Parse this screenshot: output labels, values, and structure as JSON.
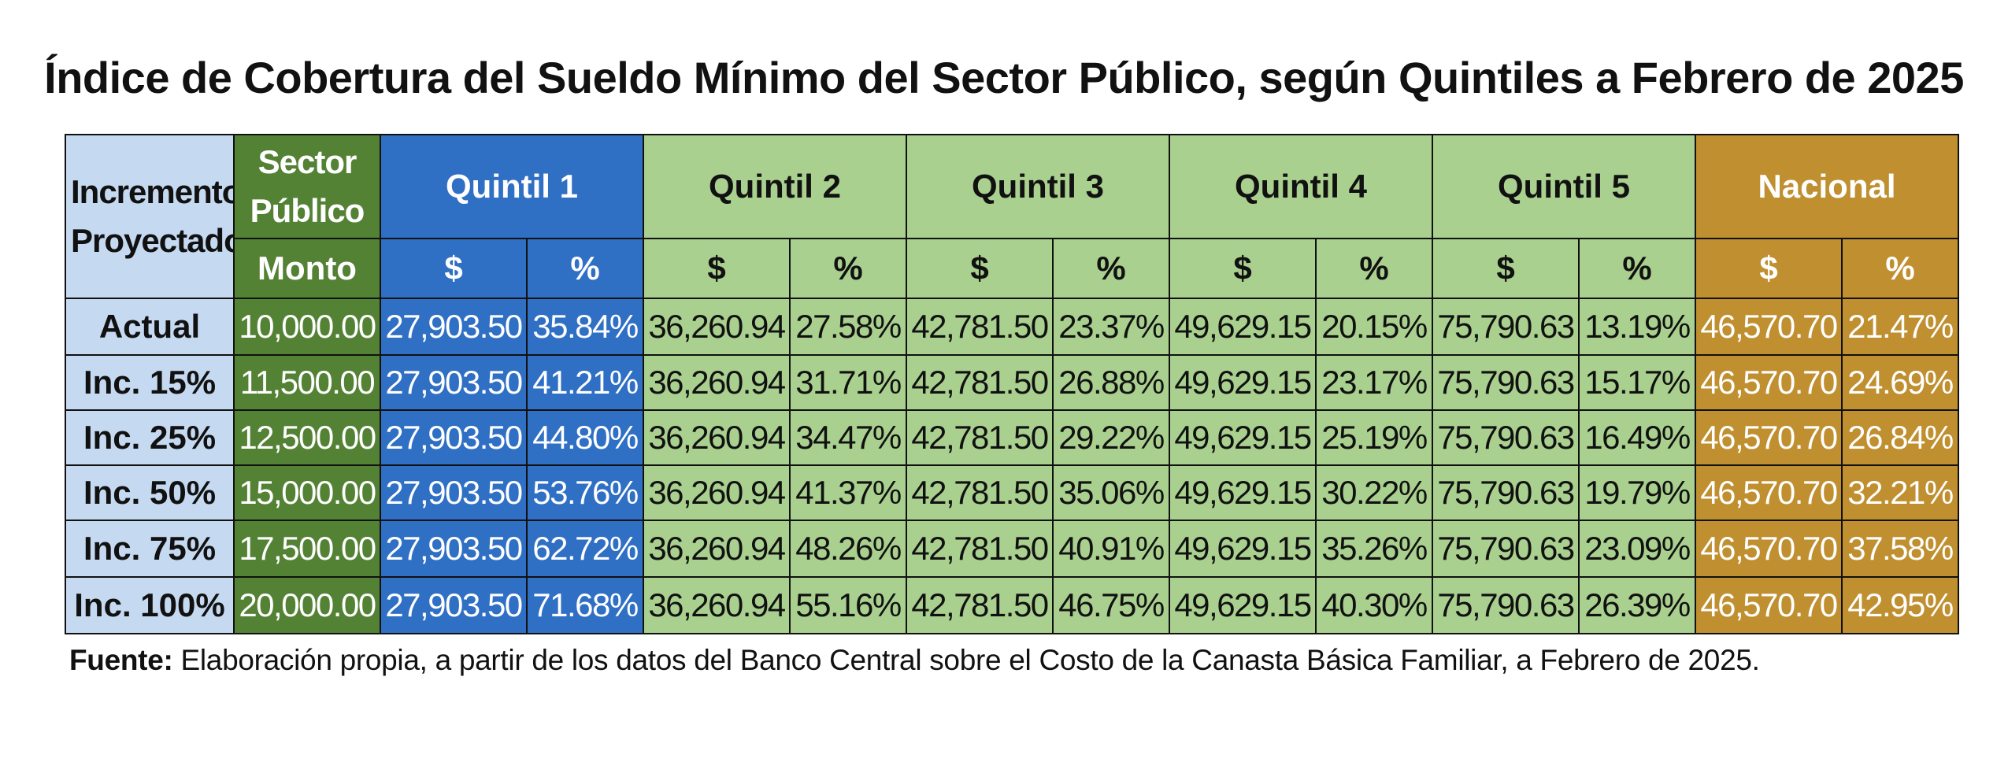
{
  "colors": {
    "incremento": "#c5d9f1",
    "sector_publico": "#548235",
    "quintil_1": "#2f6fc4",
    "quintiles_2_5": "#a9d08e",
    "nacional": "#bf8f30"
  },
  "chart_data": {
    "type": "table",
    "title": "Índice de Cobertura del Sueldo Mínimo del Sector Público, según Quintiles a Febrero de 2025",
    "header": {
      "incremento": "Incremento Proyectado",
      "sector_publico": "Sector Público",
      "monto": "Monto",
      "groups": [
        "Quintil 1",
        "Quintil 2",
        "Quintil 3",
        "Quintil 4",
        "Quintil 5",
        "Nacional"
      ],
      "money": "$",
      "pct": "%"
    },
    "rows": [
      {
        "label": "Actual",
        "monto": "10,000.00",
        "cells": [
          [
            "27,903.50",
            "35.84%"
          ],
          [
            "36,260.94",
            "27.58%"
          ],
          [
            "42,781.50",
            "23.37%"
          ],
          [
            "49,629.15",
            "20.15%"
          ],
          [
            "75,790.63",
            "13.19%"
          ],
          [
            "46,570.70",
            "21.47%"
          ]
        ]
      },
      {
        "label": "Inc. 15%",
        "monto": "11,500.00",
        "cells": [
          [
            "27,903.50",
            "41.21%"
          ],
          [
            "36,260.94",
            "31.71%"
          ],
          [
            "42,781.50",
            "26.88%"
          ],
          [
            "49,629.15",
            "23.17%"
          ],
          [
            "75,790.63",
            "15.17%"
          ],
          [
            "46,570.70",
            "24.69%"
          ]
        ]
      },
      {
        "label": "Inc. 25%",
        "monto": "12,500.00",
        "cells": [
          [
            "27,903.50",
            "44.80%"
          ],
          [
            "36,260.94",
            "34.47%"
          ],
          [
            "42,781.50",
            "29.22%"
          ],
          [
            "49,629.15",
            "25.19%"
          ],
          [
            "75,790.63",
            "16.49%"
          ],
          [
            "46,570.70",
            "26.84%"
          ]
        ]
      },
      {
        "label": "Inc. 50%",
        "monto": "15,000.00",
        "cells": [
          [
            "27,903.50",
            "53.76%"
          ],
          [
            "36,260.94",
            "41.37%"
          ],
          [
            "42,781.50",
            "35.06%"
          ],
          [
            "49,629.15",
            "30.22%"
          ],
          [
            "75,790.63",
            "19.79%"
          ],
          [
            "46,570.70",
            "32.21%"
          ]
        ]
      },
      {
        "label": "Inc. 75%",
        "monto": "17,500.00",
        "cells": [
          [
            "27,903.50",
            "62.72%"
          ],
          [
            "36,260.94",
            "48.26%"
          ],
          [
            "42,781.50",
            "40.91%"
          ],
          [
            "49,629.15",
            "35.26%"
          ],
          [
            "75,790.63",
            "23.09%"
          ],
          [
            "46,570.70",
            "37.58%"
          ]
        ]
      },
      {
        "label": "Inc. 100%",
        "monto": "20,000.00",
        "cells": [
          [
            "27,903.50",
            "71.68%"
          ],
          [
            "36,260.94",
            "55.16%"
          ],
          [
            "42,781.50",
            "46.75%"
          ],
          [
            "49,629.15",
            "40.30%"
          ],
          [
            "75,790.63",
            "26.39%"
          ],
          [
            "46,570.70",
            "42.95%"
          ]
        ]
      }
    ]
  },
  "footnote": {
    "label": "Fuente:",
    "text": " Elaboración propia, a partir de los datos del Banco Central sobre el Costo de la Canasta Básica Familiar, a Febrero de 2025."
  }
}
